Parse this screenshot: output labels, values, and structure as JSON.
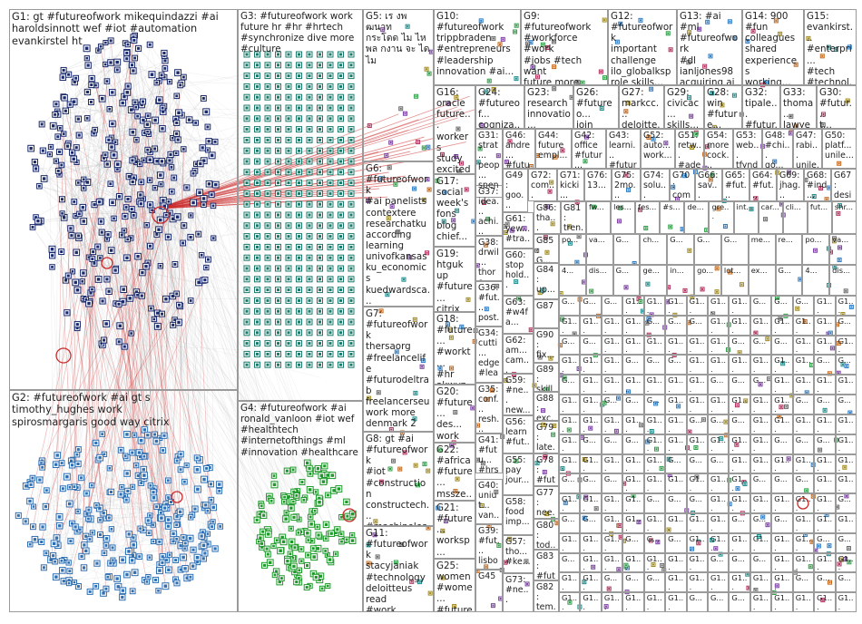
{
  "groups": [
    {
      "id": "G1",
      "text": "G1: gt #futureofwork mikequindazzi #ai\nharoldsinnott wef #iot #automation evankirstel ht"
    },
    {
      "id": "G2",
      "text": "G2: #futureofwork #ai gt s timothy_hughes work\nspirosmargaris good way citrix"
    },
    {
      "id": "G3",
      "text": "G3: #futureofwork work\nfuture hr #hr #hrtech\n#synchronize dive more\n#culture"
    },
    {
      "id": "G4",
      "text": "G4: #futureofwork #ai\nronald_vanloon #iot wef\n#healthtech\n#internetofthings #ml\n#innovation #healthcare"
    },
    {
      "id": "G5",
      "text": "G5: เร งพ ฒนาท\nกระโดด ไม ไห\nพล กงาน จะ ได\nไม"
    },
    {
      "id": "G6",
      "text": "G6:\n#futureofwork\n#ai panelists\ncontextere\nresearchatku\naccording\nlearning\nunivofkansas\nku_economics\nkuedwardsca..."
    },
    {
      "id": "G7",
      "text": "G7:\n#futureofwork\nthersaorg\n#freelancelife\n#futurodeltrab\nfreelancerseu\nwork more\ndenmark 2\ngreat"
    },
    {
      "id": "G8",
      "text": "G8: gt #ai\n#futureofwork\n#iot\n#construction\nconstructech...\n#machinelear...\nmikequindazz..."
    },
    {
      "id": "G9",
      "text": "G9: #futureofwork\n#workforce #work\n#jobs #tech want\nfuture more\n#millennials\njacobm"
    },
    {
      "id": "G10",
      "text": "G10:\n#futureofwork\ntrippbraden\n#entrepreneurs\n#leadership\ninnovation #ai..."
    },
    {
      "id": "G11",
      "text": "G11:\n#futureofwork\nstacyjaniak\n#technology\ndeloitteus read\n#work\n#innovation..."
    },
    {
      "id": "G12",
      "text": "G12:\n#futureofwork\nimportant\nchallenge\nilo_globalksp\nrole skills..."
    },
    {
      "id": "G13",
      "text": "G13: #ai #ml\n#futureofwork\n#dl\nianljones98\nacquiring ai\nexpertise..."
    },
    {
      "id": "G14",
      "text": "G14: 900\n#fun\ncolleagues\nshared\nexperiences\nworking..."
    },
    {
      "id": "G15",
      "text": "G15:\nevankirst...\n#enterpri...\n#tech\n#technol...\n#futureof..."
    },
    {
      "id": "G16",
      "text": "G16:\noracle\nfuture...\nworkers\nstudy\nexcited\nmore..."
    },
    {
      "id": "G17",
      "text": "G17:\nsocial\nweek's\nfons\nblog\nchief..."
    },
    {
      "id": "G18",
      "text": "G18:\n#future...\n#workt...\n#hr\nakwyz..."
    },
    {
      "id": "G19",
      "text": "G19:\nhtguk up\n#future...\ncitrix\nnext..."
    },
    {
      "id": "G20",
      "text": "G20:\n#future...\ndes...\nwork\ndegree..."
    },
    {
      "id": "G21",
      "text": "G21:\n#future...\nworksp...\n#walso..."
    },
    {
      "id": "G22",
      "text": "G22:\n#africa\n#future...\nmssze..."
    },
    {
      "id": "G23",
      "text": "G23:\nresearch\ninnovatio...\njoin 21..."
    },
    {
      "id": "G24",
      "text": "G24:\n#futureof...\ncogniza..."
    },
    {
      "id": "G25",
      "text": "G25:\nwomen\n#wome...\n#future..."
    },
    {
      "id": "G26",
      "text": "G26:\n#futureo...\njoin 21..."
    },
    {
      "id": "G27",
      "text": "G27:\nmarkcc...\ndeloitte..."
    },
    {
      "id": "G28",
      "text": "G28:\nwin\n#future..."
    },
    {
      "id": "G29",
      "text": "G29:\ncivicac...\nskills..."
    },
    {
      "id": "G30",
      "text": "G30:\n#futur...\nt..."
    },
    {
      "id": "G31",
      "text": "G31:\nstrat...\npeop...\nspen..."
    },
    {
      "id": "G32",
      "text": "G32:\ntipale...\n#futur..."
    },
    {
      "id": "G33",
      "text": "G33:\nthoma...\nlawyer..."
    },
    {
      "id": "G34",
      "text": "G34:\ncutti...\nedge\n#lea..."
    },
    {
      "id": "G35",
      "text": "G35:\nconf...\nresh...\nexcit..."
    },
    {
      "id": "G36",
      "text": "G36:\n#fut...\npost...\nvikru..."
    },
    {
      "id": "G37",
      "text": "G37:\nidea...\nachi...\n#fut..."
    },
    {
      "id": "G38",
      "text": "G38:\ndrwil...\nthoro...\nenjo..."
    },
    {
      "id": "G39",
      "text": "G39:\n#fut...\nlisbo..."
    },
    {
      "id": "G40",
      "text": "G40:\nuniut...\nvan..."
    },
    {
      "id": "G41",
      "text": "G41:\n#futu...\n#hrs..."
    },
    {
      "id": "G42",
      "text": "G42:\noffice\n#futur..."
    },
    {
      "id": "G43",
      "text": "G43:\nlearni...\n#futur..."
    },
    {
      "id": "G44",
      "text": "G44:\nfuture\nempl..."
    },
    {
      "id": "G45",
      "text": "G45"
    },
    {
      "id": "G46",
      "text": "G46:\nandre...\n#futur..."
    },
    {
      "id": "G47",
      "text": "G47:\nrabi...\nunile..."
    },
    {
      "id": "G48",
      "text": "G48:\n#chi...\ngo..."
    },
    {
      "id": "G49",
      "text": "G49:\ngoo...\nre..."
    },
    {
      "id": "G50",
      "text": "G50:\nplatf...\nunile..."
    },
    {
      "id": "G51",
      "text": "G51:\nretw...\n#ade..."
    },
    {
      "id": "G52",
      "text": "G52:\nauto...\nwork..."
    },
    {
      "id": "G53",
      "text": "G53:\nweb...\ntfynd..."
    },
    {
      "id": "G54",
      "text": "G54:\nmore\ncock..."
    },
    {
      "id": "G55",
      "text": "G55:\npay\njour..."
    },
    {
      "id": "G56",
      "text": "G56:\nlearn\n#fut..."
    },
    {
      "id": "G57",
      "text": "G57:\ntho...\n#ke..."
    },
    {
      "id": "G58",
      "text": "G58:\nfood\nimp..."
    },
    {
      "id": "G59",
      "text": "G59:\n#ne...\nnew..."
    },
    {
      "id": "G60",
      "text": "G60:\nstop\nhold..."
    },
    {
      "id": "G61",
      "text": "G61:\nyew...\n#tra..."
    },
    {
      "id": "G62",
      "text": "G62:\nam...\ncam..."
    },
    {
      "id": "G63",
      "text": "G63:\n#w4f\na..."
    },
    {
      "id": "G64",
      "text": "G64:\n#fut..."
    },
    {
      "id": "G65",
      "text": "G65:\n#fut..."
    },
    {
      "id": "G66",
      "text": "G66:\nsav..."
    },
    {
      "id": "G67",
      "text": "G67:\ndesi..."
    },
    {
      "id": "G68",
      "text": "G68:\n#ind..."
    },
    {
      "id": "G69",
      "text": "G69:\njhag..."
    },
    {
      "id": "G70",
      "text": "G70:\ncom..."
    },
    {
      "id": "G71",
      "text": "G71:\nkicki..."
    },
    {
      "id": "G72",
      "text": "G72:\ncom..."
    },
    {
      "id": "G73",
      "text": "G73:\n#ne..."
    },
    {
      "id": "G74",
      "text": "G74:\nsolu..."
    },
    {
      "id": "G75",
      "text": "G75:\n2mo..."
    },
    {
      "id": "G76",
      "text": "G76:\n13..."
    },
    {
      "id": "G77",
      "text": "G77:\nnee..."
    },
    {
      "id": "G78",
      "text": "G78:\n#fut"
    },
    {
      "id": "G79",
      "text": "G79:\nlate..."
    },
    {
      "id": "G80",
      "text": "G80:\ntod..."
    },
    {
      "id": "G81",
      "text": "G81:\ntren..."
    },
    {
      "id": "G82",
      "text": "G82:\ntem..."
    },
    {
      "id": "G83",
      "text": "G83:\n#fut"
    },
    {
      "id": "G84",
      "text": "G84:\nup..."
    },
    {
      "id": "G85",
      "text": "G85:\nG..."
    },
    {
      "id": "G86",
      "text": "G86:\ntha..."
    },
    {
      "id": "G87",
      "text": "G87"
    },
    {
      "id": "G88",
      "text": "G88:\nexc..."
    },
    {
      "id": "G89",
      "text": "G89:\nskill"
    },
    {
      "id": "G90",
      "text": "G90:\nfix..."
    }
  ],
  "small_cells": {
    "r1": [
      "G...",
      "G...",
      "G...",
      "G1...",
      "G1...",
      "G1...",
      "G1...",
      "G1...",
      "G1..."
    ],
    "r2": [
      "fw...",
      "les...",
      "fes...",
      "#s...",
      "de...",
      "gre...",
      "int...",
      "car...",
      "cli...",
      "fut...",
      "shr..."
    ],
    "r3": [
      "po...",
      "va...",
      "G...",
      "ch...",
      "G...",
      "G...",
      "G...",
      "me...",
      "re..."
    ],
    "r4": [
      "4...",
      "dis...",
      "G...",
      "ge...",
      "in...",
      "go...",
      "lot...",
      "ex...",
      "G..."
    ]
  },
  "colors": {
    "edge_gray": "#bfbfbf",
    "edge_red": "#cc2a2a",
    "node_navy": "#1b2a6b",
    "node_blue": "#2f6fb3",
    "node_green": "#1e9a2a",
    "node_teal": "#1b7b6b",
    "border": "#9a9a9a"
  }
}
